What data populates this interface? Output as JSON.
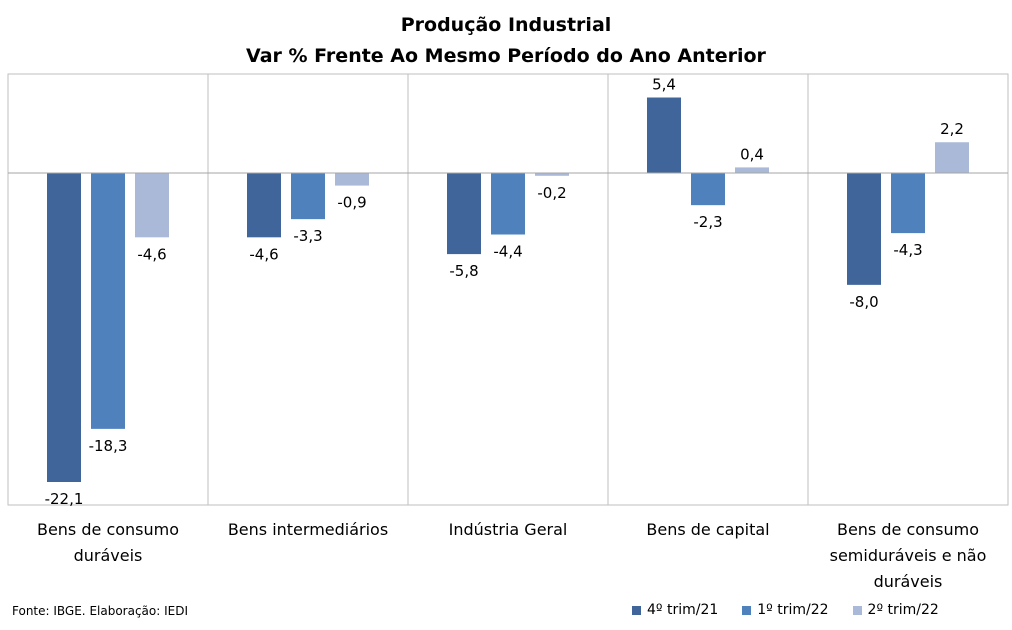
{
  "chart_data": {
    "type": "bar",
    "title": "Produção Industrial",
    "subtitle": "Var % Frente Ao Mesmo Período do Ano Anterior",
    "categories": [
      [
        "Bens de consumo",
        "duráveis"
      ],
      [
        "Bens intermediários"
      ],
      [
        "Indústria Geral"
      ],
      [
        "Bens de capital"
      ],
      [
        "Bens de consumo",
        "semiduráveis e não",
        "duráveis"
      ]
    ],
    "series": [
      {
        "name": "4º trim/21",
        "color": "#3F659B",
        "values": [
          -22.1,
          -4.6,
          -5.8,
          5.4,
          -8.0
        ],
        "labels": [
          "-22,1",
          "-4,6",
          "-5,8",
          "5,4",
          "-8,0"
        ]
      },
      {
        "name": "1º trim/22",
        "color": "#4F81BD",
        "values": [
          -18.3,
          -3.3,
          -4.4,
          -2.3,
          -4.3
        ],
        "labels": [
          "-18,3",
          "-3,3",
          "-4,4",
          "-2,3",
          "-4,3"
        ]
      },
      {
        "name": "2º trim/22",
        "color": "#A9B9D7",
        "values": [
          -4.6,
          -0.9,
          -0.2,
          0.4,
          2.2
        ],
        "labels": [
          "-4,6",
          "-0,9",
          "-0,2",
          "0,4",
          "2,2"
        ]
      }
    ],
    "ylim": [
      -23.5,
      7.0
    ],
    "grid": false,
    "legend_position": "bottom-right"
  },
  "source": "Fonte: IBGE. Elaboração: IEDI"
}
